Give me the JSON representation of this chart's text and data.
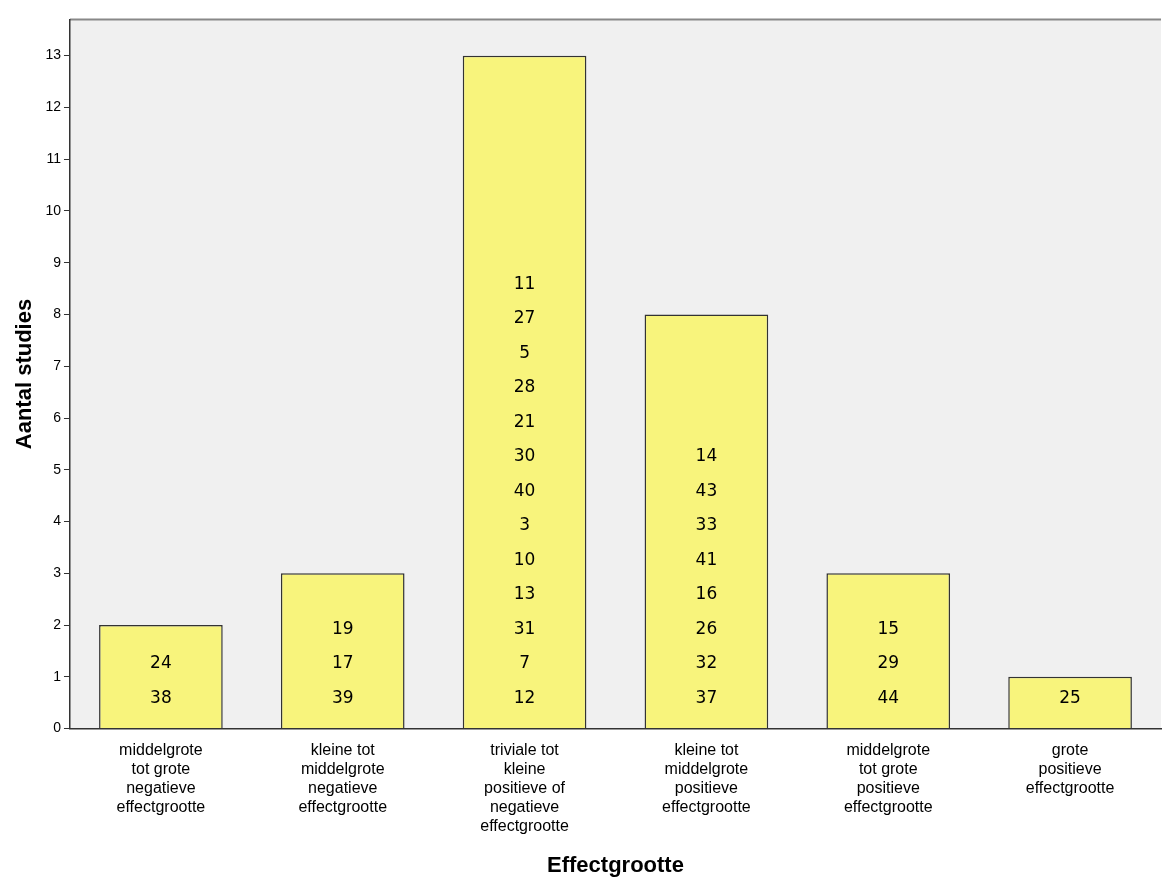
{
  "chart_data": {
    "type": "bar",
    "xlabel": "Effectgrootte",
    "ylabel": "Aantal studies",
    "categories": [
      "middelgrote tot grote negatieve effectgrootte",
      "kleine tot middelgrote negatieve effectgrootte",
      "triviale tot kleine positieve of negatieve effectgrootte",
      "kleine tot middelgrote positieve effectgrootte",
      "middelgrote tot grote positieve effectgrootte",
      "grote positieve effectgrootte"
    ],
    "values": [
      2,
      3,
      13,
      8,
      3,
      1
    ],
    "color": "#f8f47c",
    "ylim": [
      0,
      13.7
    ],
    "yticks": [
      0,
      1,
      2,
      3,
      4,
      5,
      6,
      7,
      8,
      9,
      10,
      11,
      12,
      13
    ],
    "grid": false,
    "legend": false,
    "annotations": [
      "24\n38",
      "19\n17\n39",
      "11\n27\n5\n28\n21\n30\n40\n3\n10\n13\n31\n7\n12",
      "14\n43\n33\n41\n16\n26\n32\n37",
      "15\n29\n44",
      "25"
    ]
  }
}
